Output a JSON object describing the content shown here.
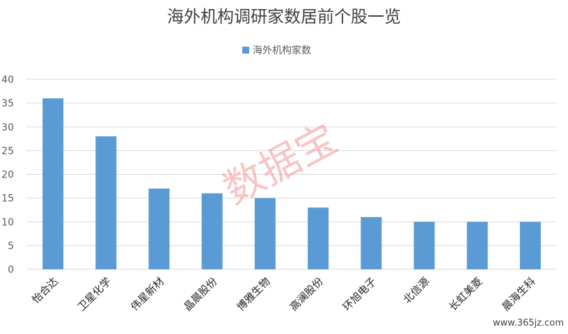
{
  "chart_data": {
    "type": "bar",
    "title": "海外机构调研家数居前个股一览",
    "categories": [
      "怡合达",
      "卫星化学",
      "伟星新材",
      "晶晨股份",
      "博雅生物",
      "高澜股份",
      "环旭电子",
      "北信源",
      "长虹美菱",
      "晨海生科"
    ],
    "series": [
      {
        "name": "海外机构家数",
        "values": [
          36,
          28,
          17,
          16,
          15,
          13,
          11,
          10,
          10,
          10
        ],
        "color": "#5b9bd5"
      }
    ],
    "ylim": [
      0,
      40
    ],
    "yticks": [
      0,
      5,
      10,
      15,
      20,
      25,
      30,
      35,
      40
    ],
    "grid": true,
    "legend": "top-center"
  },
  "watermark": "数据宝",
  "site": "www.365jz.com"
}
